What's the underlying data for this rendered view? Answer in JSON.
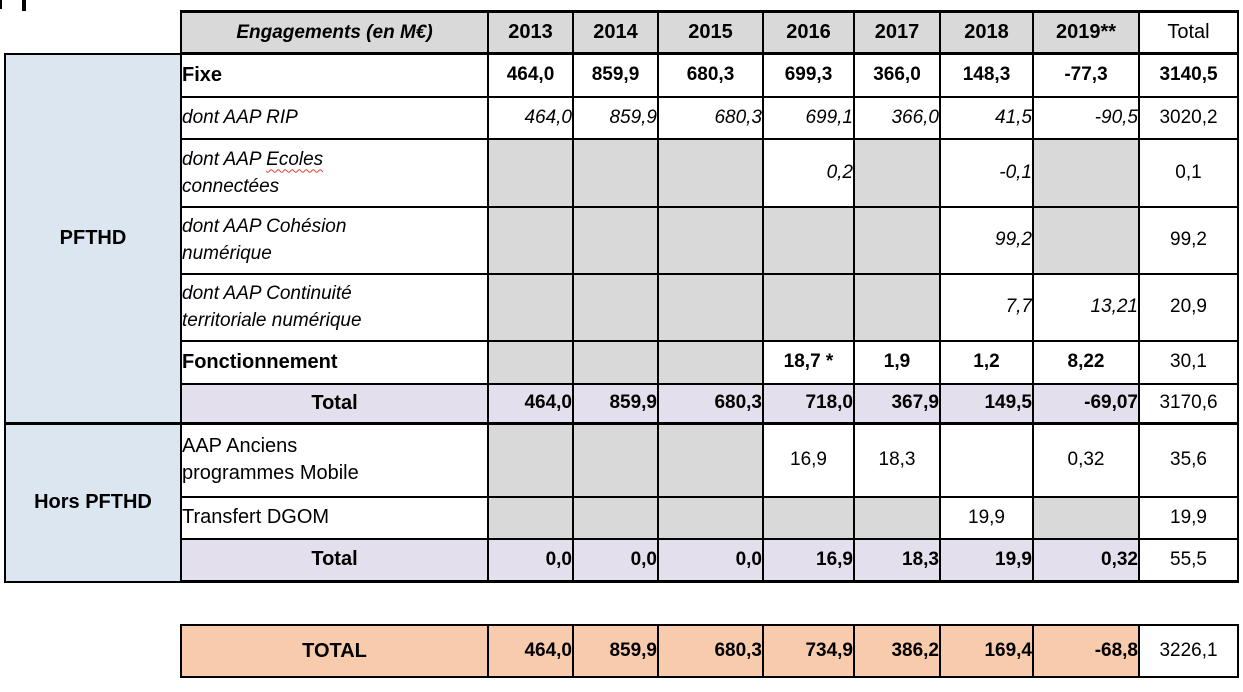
{
  "colors": {
    "header_gray": "#d9d9d9",
    "group_blue": "#dce6f1",
    "subtotal_lavender": "#e4dfec",
    "grand_orange": "#f8cbad",
    "border_black": "#000000",
    "squiggle_red": "#e03c31"
  },
  "table": {
    "header": {
      "label": "Engagements (en M€)",
      "years": [
        "2013",
        "2014",
        "2015",
        "2016",
        "2017",
        "2018",
        "2019**"
      ],
      "total_label": "Total"
    },
    "groups": [
      {
        "name": "PFTHD",
        "rows": [
          {
            "label": "Fixe",
            "style": "bold",
            "total": "3140,5",
            "total_bold": true,
            "cells": [
              {
                "v": "464,0",
                "bg": "w"
              },
              {
                "v": "859,9",
                "bg": "w"
              },
              {
                "v": "680,3",
                "bg": "w"
              },
              {
                "v": "699,3",
                "bg": "w"
              },
              {
                "v": "366,0",
                "bg": "w"
              },
              {
                "v": "148,3",
                "bg": "w"
              },
              {
                "v": "-77,3",
                "bg": "w"
              }
            ]
          },
          {
            "label": "dont AAP RIP",
            "style": "italic",
            "total": "3020,2",
            "total_bold": false,
            "cells": [
              {
                "v": "464,0",
                "bg": "w"
              },
              {
                "v": "859,9",
                "bg": "w"
              },
              {
                "v": "680,3",
                "bg": "w"
              },
              {
                "v": "699,1",
                "bg": "w"
              },
              {
                "v": "366,0",
                "bg": "w"
              },
              {
                "v": "41,5",
                "bg": "w"
              },
              {
                "v": "-90,5",
                "bg": "w"
              }
            ]
          },
          {
            "label": "dont AAP Ecoles\nconnectées",
            "style": "italic",
            "total": "0,1",
            "total_bold": false,
            "label_parts": {
              "pre": "dont AAP ",
              "mis": "Ecoles",
              "post": "\nconnectées"
            },
            "cells": [
              {
                "v": "",
                "bg": "g"
              },
              {
                "v": "",
                "bg": "g"
              },
              {
                "v": "",
                "bg": "g"
              },
              {
                "v": "0,2",
                "bg": "w"
              },
              {
                "v": "",
                "bg": "g"
              },
              {
                "v": "-0,1",
                "bg": "w"
              },
              {
                "v": "",
                "bg": "g"
              }
            ]
          },
          {
            "label": "dont AAP Cohésion\nnumérique",
            "style": "italic",
            "total": "99,2",
            "total_bold": false,
            "cells": [
              {
                "v": "",
                "bg": "g"
              },
              {
                "v": "",
                "bg": "g"
              },
              {
                "v": "",
                "bg": "g"
              },
              {
                "v": "",
                "bg": "g"
              },
              {
                "v": "",
                "bg": "g"
              },
              {
                "v": "99,2",
                "bg": "w"
              },
              {
                "v": "",
                "bg": "g"
              }
            ]
          },
          {
            "label": "dont AAP Continuité\nterritoriale numérique",
            "style": "italic",
            "total": "20,9",
            "total_bold": false,
            "cells": [
              {
                "v": "",
                "bg": "g"
              },
              {
                "v": "",
                "bg": "g"
              },
              {
                "v": "",
                "bg": "g"
              },
              {
                "v": "",
                "bg": "g"
              },
              {
                "v": "",
                "bg": "g"
              },
              {
                "v": "7,7",
                "bg": "w"
              },
              {
                "v": "13,21",
                "bg": "w"
              }
            ]
          },
          {
            "label": "Fonctionnement",
            "style": "bold",
            "total": "30,1",
            "total_bold": false,
            "cells": [
              {
                "v": "",
                "bg": "g"
              },
              {
                "v": "",
                "bg": "g"
              },
              {
                "v": "",
                "bg": "g"
              },
              {
                "v": "18,7 *",
                "bg": "w"
              },
              {
                "v": "1,9",
                "bg": "w"
              },
              {
                "v": "1,2",
                "bg": "w"
              },
              {
                "v": "8,22",
                "bg": "w"
              }
            ]
          },
          {
            "label": "Total",
            "type": "subtotal",
            "style": "bold",
            "total": "3170,6",
            "total_bold": false,
            "cells": [
              {
                "v": "464,0",
                "bg": "l"
              },
              {
                "v": "859,9",
                "bg": "l"
              },
              {
                "v": "680,3",
                "bg": "l"
              },
              {
                "v": "718,0",
                "bg": "l"
              },
              {
                "v": "367,9",
                "bg": "l"
              },
              {
                "v": "149,5",
                "bg": "l"
              },
              {
                "v": "-69,07",
                "bg": "l"
              }
            ]
          }
        ]
      },
      {
        "name": "Hors PFTHD",
        "rows": [
          {
            "label": "AAP Anciens\nprogrammes Mobile",
            "style": "reg",
            "total": "35,6",
            "total_bold": false,
            "cells": [
              {
                "v": "",
                "bg": "g"
              },
              {
                "v": "",
                "bg": "g"
              },
              {
                "v": "",
                "bg": "g"
              },
              {
                "v": "16,9",
                "bg": "w"
              },
              {
                "v": "18,3",
                "bg": "w"
              },
              {
                "v": "",
                "bg": "w"
              },
              {
                "v": "0,32",
                "bg": "w"
              }
            ]
          },
          {
            "label": "Transfert DGOM",
            "style": "reg",
            "total": "19,9",
            "total_bold": false,
            "cells": [
              {
                "v": "",
                "bg": "g"
              },
              {
                "v": "",
                "bg": "g"
              },
              {
                "v": "",
                "bg": "g"
              },
              {
                "v": "",
                "bg": "g"
              },
              {
                "v": "",
                "bg": "g"
              },
              {
                "v": "19,9",
                "bg": "w"
              },
              {
                "v": "",
                "bg": "g"
              }
            ]
          },
          {
            "label": "Total",
            "type": "subtotal",
            "style": "bold",
            "total": "55,5",
            "total_bold": false,
            "cells": [
              {
                "v": "0,0",
                "bg": "l"
              },
              {
                "v": "0,0",
                "bg": "l"
              },
              {
                "v": "0,0",
                "bg": "l"
              },
              {
                "v": "16,9",
                "bg": "l"
              },
              {
                "v": "18,3",
                "bg": "l"
              },
              {
                "v": "19,9",
                "bg": "l"
              },
              {
                "v": "0,32",
                "bg": "l"
              }
            ]
          }
        ]
      }
    ],
    "grand_total": {
      "label": "TOTAL",
      "values": [
        "464,0",
        "859,9",
        "680,3",
        "734,9",
        "386,2",
        "169,4",
        "-68,8"
      ],
      "total": "3226,1"
    }
  }
}
